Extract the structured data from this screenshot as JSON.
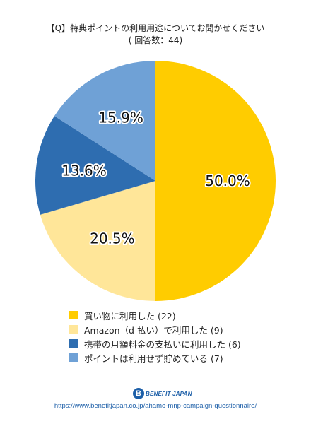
{
  "title": "【Q】特典ポイントの利用用途についてお聞かせください",
  "subtitle": "( 回答数：44)",
  "chart_data": {
    "type": "pie",
    "start_angle": "12 o'clock",
    "direction": "clockwise",
    "legend_placement": "bottom",
    "slices": [
      {
        "label": "買い物に利用した (22)",
        "value": 22,
        "percent": "50.0%",
        "color": "#FFCC00"
      },
      {
        "label": "Amazon（d 払い）で利用した (9)",
        "value": 9,
        "percent": "20.5%",
        "color": "#FFE699"
      },
      {
        "label": "携帯の月額料金の支払いに利用した (6)",
        "value": 6,
        "percent": "13.6%",
        "color": "#2E6DB0"
      },
      {
        "label": "ポイントは利用せず貯めている (7)",
        "value": 7,
        "percent": "15.9%",
        "color": "#6FA1D6"
      }
    ]
  },
  "logo": {
    "mark": "B",
    "text": "BENEFIT JAPAN"
  },
  "url": "https://www.benefitjapan.co.jp/ahamo-mnp-campaign-questionnaire/"
}
